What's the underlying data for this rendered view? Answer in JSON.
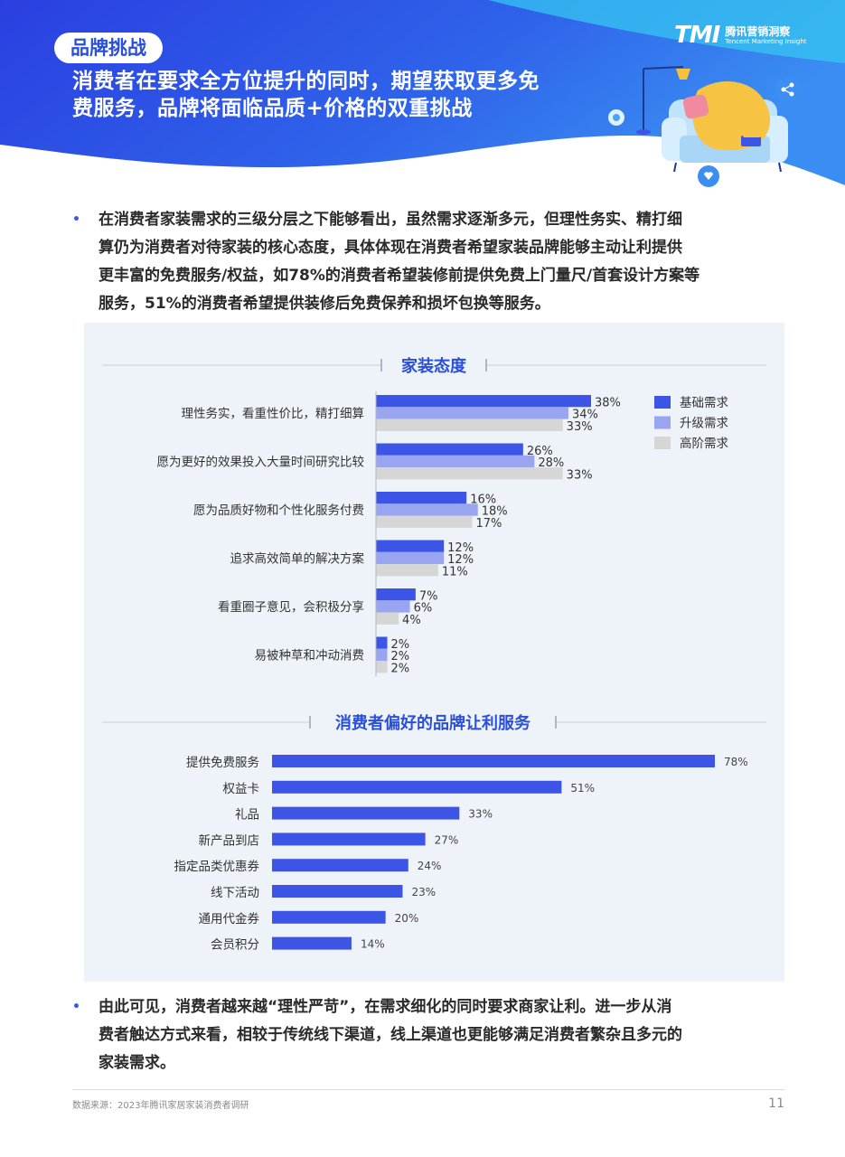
{
  "header": {
    "tag": "品牌挑战",
    "headline_line1": "消费者在要求全方位提升的同时，期望获取更多免",
    "headline_line2": "费服务，品牌将面临品质+价格的双重挑战",
    "logo_mark": "TMI",
    "logo_cn": "腾讯营销洞察",
    "logo_en": "Tencent Marketing Insight"
  },
  "paragraph1": {
    "lines": [
      "在消费者家装需求的三级分层之下能够看出，虽然需求逐渐多元，但理性务实、精打细",
      "算仍为消费者对待家装的核心态度，具体体现在消费者希望家装品牌能够主动让利提供",
      "更丰富的免费服务/权益，如78%的消费者希望装修前提供免费上门量尺/首套设计方案等",
      "服务，51%的消费者希望提供装修后免费保养和损坏包换等服务。"
    ]
  },
  "paragraph2": {
    "lines": [
      "由此可见，消费者越来越“理性严苛”，在需求细化的同时要求商家让利。进一步从消",
      "费者触达方式来看，相较于传统线下渠道，线上渠道也更能够满足消费者繁杂且多元的",
      "家装需求。"
    ]
  },
  "colors": {
    "basic": "#3d55e6",
    "upgrade": "#9aa5f2",
    "advanced": "#d6d6d6",
    "accent": "#2a4fd8",
    "panel": "#eef2f9"
  },
  "chart_data": [
    {
      "type": "bar",
      "orientation": "horizontal",
      "title": "家装态度",
      "categories": [
        "理性务实，看重性价比，精打细算",
        "愿为更好的效果投入大量时间研究比较",
        "愿为品质好物和个性化服务付费",
        "追求高效简单的解决方案",
        "看重圈子意见，会积极分享",
        "易被种草和冲动消费"
      ],
      "series": [
        {
          "name": "基础需求",
          "values": [
            38,
            26,
            16,
            12,
            7,
            2
          ],
          "color": "#3d55e6"
        },
        {
          "name": "升级需求",
          "values": [
            34,
            28,
            18,
            12,
            6,
            2
          ],
          "color": "#9aa5f2"
        },
        {
          "name": "高阶需求",
          "values": [
            33,
            33,
            17,
            11,
            4,
            2
          ],
          "color": "#d6d6d6"
        }
      ],
      "value_suffix": "%",
      "legend_position": "top-right",
      "grid": false
    },
    {
      "type": "bar",
      "orientation": "horizontal",
      "title": "消费者偏好的品牌让利服务",
      "categories": [
        "提供免费服务",
        "权益卡",
        "礼品",
        "新产品到店",
        "指定品类优惠券",
        "线下活动",
        "通用代金券",
        "会员积分"
      ],
      "values": [
        78,
        51,
        33,
        27,
        24,
        23,
        20,
        14
      ],
      "value_suffix": "%",
      "color": "#3d55e6",
      "grid": false
    }
  ],
  "footer": {
    "source": "数据来源：2023年腾讯家居家装消费者调研",
    "page_number": "11"
  }
}
